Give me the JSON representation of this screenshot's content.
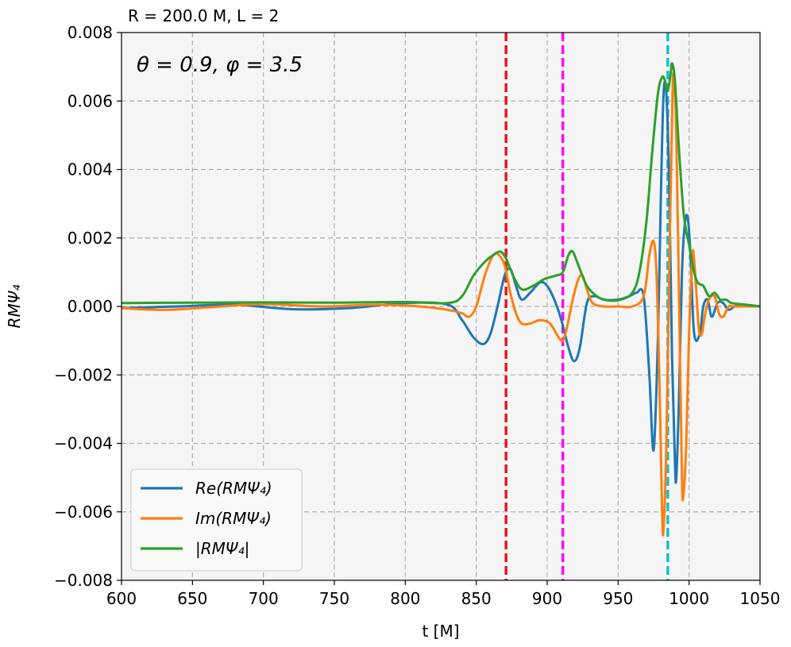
{
  "chart_data": {
    "type": "line",
    "title": "R = 200.0 M, L = 2",
    "annotation": "θ = 0.9, φ = 3.5",
    "xlabel": "t [M]",
    "ylabel": "RMΨ₄",
    "xlim": [
      600,
      1050
    ],
    "ylim": [
      -0.008,
      0.008
    ],
    "xticks": [
      600,
      650,
      700,
      750,
      800,
      850,
      900,
      950,
      1000,
      1050
    ],
    "yticks": [
      -0.008,
      -0.006,
      -0.004,
      -0.002,
      0.0,
      0.002,
      0.004,
      0.006,
      0.008
    ],
    "xtick_labels": [
      "600",
      "650",
      "700",
      "750",
      "800",
      "850",
      "900",
      "950",
      "1000",
      "1050"
    ],
    "ytick_labels": [
      "−0.008",
      "−0.006",
      "−0.004",
      "−0.002",
      "0.000",
      "0.002",
      "0.004",
      "0.006",
      "0.008"
    ],
    "grid": true,
    "legend_position": "lower-left",
    "vlines": [
      {
        "x": 871,
        "color": "#e41a1c"
      },
      {
        "x": 911,
        "color": "#ff00ff"
      },
      {
        "x": 985,
        "color": "#17becf"
      }
    ],
    "series": [
      {
        "name": "Re(RMΨ₄)",
        "color": "#1f77b4",
        "points": [
          [
            600,
            -5e-05
          ],
          [
            640,
            0.0
          ],
          [
            680,
            5e-05
          ],
          [
            720,
            -8e-05
          ],
          [
            760,
            -5e-05
          ],
          [
            800,
            0.0001
          ],
          [
            830,
            5e-05
          ],
          [
            840,
            -0.0004
          ],
          [
            848,
            -0.0009
          ],
          [
            855,
            -0.0011
          ],
          [
            860,
            -0.0008
          ],
          [
            865,
            0.0
          ],
          [
            870,
            0.0009
          ],
          [
            874,
            0.0011
          ],
          [
            878,
            0.0006
          ],
          [
            882,
            0.0002
          ],
          [
            888,
            0.0004
          ],
          [
            895,
            0.0007
          ],
          [
            900,
            0.0006
          ],
          [
            905,
            0.0002
          ],
          [
            910,
            -0.0004
          ],
          [
            915,
            -0.0012
          ],
          [
            919,
            -0.0016
          ],
          [
            923,
            -0.0012
          ],
          [
            928,
            0.0001
          ],
          [
            933,
            0.0003
          ],
          [
            940,
            0.0002
          ],
          [
            950,
            0.0002
          ],
          [
            958,
            0.0003
          ],
          [
            963,
            0.0004
          ],
          [
            968,
            0.0003
          ],
          [
            972,
            -0.002
          ],
          [
            975,
            -0.0042
          ],
          [
            978,
            -0.001
          ],
          [
            980,
            0.003
          ],
          [
            982,
            0.0062
          ],
          [
            984,
            0.0062
          ],
          [
            986,
            0.0035
          ],
          [
            988,
            -0.0015
          ],
          [
            990,
            -0.0045
          ],
          [
            991,
            -0.005
          ],
          [
            993,
            -0.0025
          ],
          [
            995,
            0.001
          ],
          [
            997,
            0.0024
          ],
          [
            999,
            0.0026
          ],
          [
            1001,
            0.0015
          ],
          [
            1003,
            -0.0005
          ],
          [
            1005,
            -0.001
          ],
          [
            1008,
            -0.0007
          ],
          [
            1010,
            0.0
          ],
          [
            1013,
            0.0002
          ],
          [
            1016,
            -0.0003
          ],
          [
            1020,
            0.0001
          ],
          [
            1024,
            0.0001
          ],
          [
            1028,
            -0.0001
          ],
          [
            1035,
            5e-05
          ],
          [
            1050,
            0.0
          ]
        ]
      },
      {
        "name": "Im(RMΨ₄)",
        "color": "#ff7f0e",
        "points": [
          [
            600,
            -5e-05
          ],
          [
            630,
            -0.0001
          ],
          [
            660,
            -3e-05
          ],
          [
            700,
            7e-05
          ],
          [
            740,
            0.0
          ],
          [
            780,
            5e-05
          ],
          [
            810,
            0.0
          ],
          [
            830,
            -0.0001
          ],
          [
            840,
            -0.0002
          ],
          [
            845,
            -0.0003
          ],
          [
            850,
            0.0
          ],
          [
            856,
            0.0009
          ],
          [
            862,
            0.0015
          ],
          [
            866,
            0.0015
          ],
          [
            870,
            0.0012
          ],
          [
            874,
            0.0004
          ],
          [
            878,
            -0.0002
          ],
          [
            882,
            -0.0005
          ],
          [
            888,
            -0.0005
          ],
          [
            895,
            -0.0004
          ],
          [
            902,
            -0.0005
          ],
          [
            908,
            -0.0009
          ],
          [
            911,
            -0.001
          ],
          [
            914,
            -0.0006
          ],
          [
            918,
            0.0002
          ],
          [
            922,
            0.0008
          ],
          [
            925,
            0.0009
          ],
          [
            928,
            0.0005
          ],
          [
            932,
            0.0001
          ],
          [
            940,
            0.0
          ],
          [
            950,
            0.0
          ],
          [
            960,
            0.0
          ],
          [
            968,
            0.0003
          ],
          [
            972,
            0.0015
          ],
          [
            975,
            0.0019
          ],
          [
            977,
            0.001
          ],
          [
            979,
            -0.002
          ],
          [
            981,
            -0.006
          ],
          [
            982,
            -0.0065
          ],
          [
            984,
            -0.004
          ],
          [
            986,
            0.001
          ],
          [
            988,
            0.0055
          ],
          [
            989,
            0.0068
          ],
          [
            991,
            0.005
          ],
          [
            993,
            0.0
          ],
          [
            995,
            -0.005
          ],
          [
            996,
            -0.0055
          ],
          [
            998,
            -0.004
          ],
          [
            1000,
            -0.0008
          ],
          [
            1002,
            0.0012
          ],
          [
            1003,
            0.0016
          ],
          [
            1005,
            0.0005
          ],
          [
            1007,
            -0.0007
          ],
          [
            1009,
            -0.0008
          ],
          [
            1011,
            -0.0003
          ],
          [
            1014,
            0.0002
          ],
          [
            1018,
            0.0003
          ],
          [
            1021,
            -0.0002
          ],
          [
            1024,
            -0.0003
          ],
          [
            1028,
            0.0
          ],
          [
            1032,
            0.0
          ],
          [
            1050,
            0.0
          ]
        ]
      },
      {
        "name": "|RMΨ₄|",
        "color": "#2ca02c",
        "points": [
          [
            600,
            0.0001
          ],
          [
            650,
            0.00011
          ],
          [
            700,
            0.00012
          ],
          [
            750,
            0.00011
          ],
          [
            800,
            0.00013
          ],
          [
            830,
            0.0001
          ],
          [
            840,
            0.0003
          ],
          [
            848,
            0.0009
          ],
          [
            856,
            0.0013
          ],
          [
            862,
            0.0015
          ],
          [
            867,
            0.0016
          ],
          [
            871,
            0.0014
          ],
          [
            876,
            0.0009
          ],
          [
            882,
            0.0005
          ],
          [
            890,
            0.0006
          ],
          [
            898,
            0.0008
          ],
          [
            906,
            0.0009
          ],
          [
            911,
            0.001
          ],
          [
            915,
            0.0015
          ],
          [
            918,
            0.0016
          ],
          [
            922,
            0.0012
          ],
          [
            928,
            0.0006
          ],
          [
            935,
            0.0003
          ],
          [
            942,
            0.00018
          ],
          [
            952,
            0.0002
          ],
          [
            960,
            0.0004
          ],
          [
            965,
            0.001
          ],
          [
            970,
            0.0025
          ],
          [
            974,
            0.0045
          ],
          [
            978,
            0.0062
          ],
          [
            981,
            0.0067
          ],
          [
            983,
            0.0066
          ],
          [
            985,
            0.0063
          ],
          [
            987,
            0.0068
          ],
          [
            988,
            0.0071
          ],
          [
            990,
            0.0066
          ],
          [
            993,
            0.0045
          ],
          [
            996,
            0.0028
          ],
          [
            998,
            0.0022
          ],
          [
            1000,
            0.0018
          ],
          [
            1003,
            0.0011
          ],
          [
            1006,
            0.0007
          ],
          [
            1010,
            0.0006
          ],
          [
            1014,
            0.0003
          ],
          [
            1018,
            0.0004
          ],
          [
            1022,
            0.0002
          ],
          [
            1026,
            0.0002
          ],
          [
            1030,
            0.0001
          ],
          [
            1040,
            5e-05
          ],
          [
            1050,
            0.0
          ]
        ]
      }
    ]
  }
}
